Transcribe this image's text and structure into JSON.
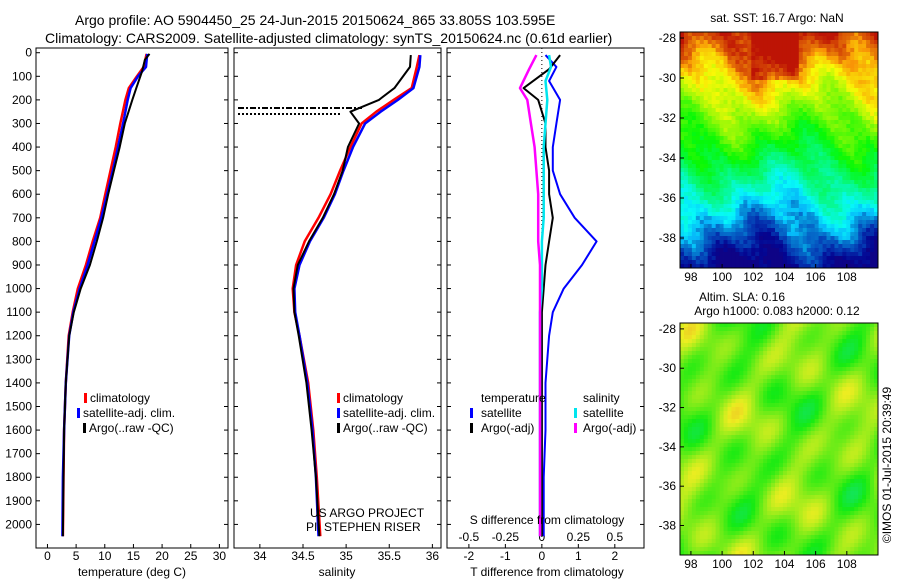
{
  "header": {
    "line1": "Argo profile: AO 5904450_25 24-Jun-2015 20150624_865 33.805S 103.595E",
    "line2": "Climatology: CARS2009. Satellite-adjusted climatology: synTS_20150624.nc (0.61d earlier)"
  },
  "side": {
    "sst_title": "sat. SST: 16.7 Argo: NaN",
    "sla_title1": "Altim. SLA: 0.16",
    "sla_title2": "Argo h1000: 0.083 h2000: 0.12",
    "credit": "©IMOS 01-Jul-2015 20:39:49"
  },
  "project": {
    "line1": "US ARGO PROJECT",
    "line2": "PI: STEPHEN RISER"
  },
  "colors": {
    "climatology": "#ff0000",
    "satellite": "#0000ff",
    "argo": "#000000",
    "sat_salinity": "#00e5ee",
    "argo_salinity": "#ff00ff"
  },
  "chart_data": [
    {
      "type": "line",
      "xlabel": "temperature (deg C)",
      "ylabel": "",
      "xlim": [
        -2,
        31.5
      ],
      "ylim": [
        2100,
        -20
      ],
      "xticks": [
        "0",
        "5",
        "10",
        "15",
        "20",
        "25",
        "30"
      ],
      "yticks": [
        "0",
        "100",
        "200",
        "300",
        "400",
        "500",
        "600",
        "700",
        "800",
        "900",
        "1000",
        "1100",
        "1200",
        "1300",
        "1400",
        "1500",
        "1600",
        "1700",
        "1800",
        "1900",
        "2000"
      ],
      "legend": [
        "climatology",
        "satellite-adj. clim.",
        "Argo(..raw -QC)"
      ],
      "series": [
        {
          "name": "climatology",
          "x": [
            17.3,
            16.8,
            15.6,
            14.2,
            13.6,
            12.7,
            11.9,
            11.0,
            10.1,
            9.2,
            7.9,
            6.7,
            5.3,
            4.4,
            3.7,
            3.2,
            2.9,
            2.8,
            2.7
          ],
          "y": [
            5,
            60,
            100,
            150,
            200,
            300,
            400,
            500,
            600,
            700,
            800,
            900,
            1000,
            1100,
            1200,
            1400,
            1600,
            1800,
            2050
          ]
        },
        {
          "name": "satellite-adj. clim.",
          "x": [
            17.4,
            17.2,
            15.8,
            14.5,
            14.0,
            13.2,
            12.3,
            11.4,
            10.4,
            9.4,
            8.2,
            7.0,
            5.6,
            4.5,
            3.8,
            3.2,
            2.9,
            2.7,
            2.6
          ],
          "y": [
            5,
            60,
            100,
            150,
            200,
            300,
            400,
            500,
            600,
            700,
            800,
            900,
            1000,
            1100,
            1200,
            1400,
            1600,
            1800,
            2050
          ]
        },
        {
          "name": "Argo(..raw -QC)",
          "x": [
            17.8,
            17.0,
            16.5,
            15.5,
            14.8,
            13.5,
            12.6,
            11.6,
            10.6,
            9.7,
            8.6,
            7.4,
            5.8,
            4.6,
            3.8,
            3.2,
            2.9,
            2.8,
            2.7
          ],
          "y": [
            5,
            30,
            80,
            150,
            200,
            300,
            400,
            500,
            600,
            700,
            800,
            900,
            1000,
            1100,
            1200,
            1400,
            1600,
            1800,
            2050
          ]
        }
      ]
    },
    {
      "type": "line",
      "xlabel": "salinity",
      "ylabel": "",
      "xlim": [
        33.7,
        36.1
      ],
      "ylim": [
        2100,
        -20
      ],
      "xticks": [
        "34",
        "34.5",
        "35",
        "35.5",
        "36"
      ],
      "legend": [
        "climatology",
        "satellite-adj. clim.",
        "Argo(..raw -QC)"
      ],
      "series": [
        {
          "name": "climatology",
          "x": [
            35.85,
            35.82,
            35.76,
            35.55,
            35.35,
            35.18,
            35.05,
            34.93,
            34.82,
            34.68,
            34.52,
            34.42,
            34.38,
            34.4,
            34.46,
            34.56,
            34.62,
            34.66,
            34.7
          ],
          "y": [
            10,
            60,
            150,
            200,
            250,
            300,
            400,
            500,
            600,
            700,
            800,
            900,
            1000,
            1100,
            1200,
            1400,
            1600,
            1800,
            2050
          ]
        },
        {
          "name": "satellite-adj. clim.",
          "x": [
            35.86,
            35.85,
            35.78,
            35.6,
            35.4,
            35.22,
            35.08,
            34.97,
            34.87,
            34.74,
            34.58,
            34.46,
            34.4,
            34.41,
            34.46,
            34.55,
            34.61,
            34.65,
            34.68
          ],
          "y": [
            10,
            60,
            150,
            200,
            250,
            300,
            400,
            500,
            600,
            700,
            800,
            900,
            1000,
            1100,
            1200,
            1400,
            1600,
            1800,
            2050
          ]
        },
        {
          "name": "Argo(..raw -QC)",
          "x": [
            35.75,
            35.74,
            35.56,
            35.38,
            35.05,
            35.15,
            35.02,
            34.96,
            34.86,
            34.73,
            34.57,
            34.44,
            34.39,
            34.4,
            34.45,
            34.54,
            34.6,
            34.65,
            34.69
          ],
          "y": [
            10,
            60,
            150,
            200,
            250,
            300,
            400,
            500,
            600,
            700,
            800,
            900,
            1000,
            1100,
            1200,
            1400,
            1600,
            1800,
            2050
          ]
        }
      ]
    },
    {
      "type": "line",
      "xlabel": "T difference from climatology",
      "top_label": "S difference from climatology",
      "xlim": [
        -2.6,
        2.8
      ],
      "ylim": [
        2100,
        -20
      ],
      "xticks": [
        "-2",
        "-1",
        "0",
        "1",
        "2"
      ],
      "top_ticks": [
        "-0.5",
        "-0.25",
        "0",
        "0.25",
        "0.5"
      ],
      "legend_headers": [
        "temperature",
        "salinity"
      ],
      "legend": [
        "satellite",
        "Argo(-adj)",
        "satellite",
        "Argo(-adj)"
      ],
      "series": [
        {
          "name": "satellite",
          "x": [
            0.1,
            0.4,
            0.2,
            0.5,
            0.4,
            0.3,
            0.3,
            0.5,
            0.9,
            1.5,
            1.1,
            0.6,
            0.3,
            0.2,
            0.1,
            0.1,
            0.05,
            0.05
          ],
          "y": [
            10,
            60,
            120,
            200,
            300,
            400,
            500,
            600,
            700,
            800,
            900,
            1000,
            1100,
            1200,
            1400,
            1600,
            1800,
            2050
          ]
        },
        {
          "name": "Argo(-adj)",
          "x": [
            0.5,
            0.2,
            -0.5,
            -0.1,
            0.1,
            0.1,
            0.2,
            0.2,
            0.3,
            0.2,
            0.1,
            0.05,
            0.0,
            0.0,
            0.0,
            0.0,
            0.0,
            0.0
          ],
          "y": [
            10,
            70,
            150,
            200,
            300,
            400,
            500,
            600,
            700,
            800,
            900,
            1000,
            1100,
            1200,
            1400,
            1600,
            1800,
            2050
          ]
        },
        {
          "name": "satellite",
          "x": [
            0.2,
            0.25,
            0.1,
            0.15,
            0.1,
            0.05,
            0.05,
            0.05,
            0.05,
            0.0,
            0.0,
            0.0,
            -0.05,
            -0.05,
            -0.05,
            -0.05,
            -0.05,
            -0.05
          ],
          "y": [
            10,
            60,
            120,
            200,
            300,
            400,
            500,
            600,
            700,
            800,
            900,
            1000,
            1100,
            1200,
            1400,
            1600,
            1800,
            2050
          ]
        },
        {
          "name": "Argo(-adj)",
          "x": [
            -0.15,
            -0.35,
            -0.6,
            -0.4,
            -0.3,
            -0.2,
            -0.15,
            -0.1,
            -0.1,
            -0.1,
            -0.05,
            -0.05,
            -0.05,
            -0.05,
            -0.05,
            -0.05,
            -0.05,
            -0.05
          ],
          "y": [
            10,
            70,
            150,
            200,
            300,
            400,
            500,
            600,
            700,
            800,
            900,
            1000,
            1100,
            1200,
            1400,
            1600,
            1800,
            2050
          ]
        }
      ]
    },
    {
      "type": "heatmap",
      "title": "sat. SST: 16.7 Argo: NaN",
      "xticks": [
        "98",
        "100",
        "102",
        "104",
        "106",
        "108"
      ],
      "yticks": [
        "-28",
        "-30",
        "-32",
        "-34",
        "-36",
        "-38"
      ],
      "xlim": [
        97.3,
        110
      ],
      "ylim": [
        -39.5,
        -27.7
      ]
    },
    {
      "type": "heatmap",
      "title": "Altim. SLA: 0.16",
      "xticks": [
        "98",
        "100",
        "102",
        "104",
        "106",
        "108"
      ],
      "yticks": [
        "-28",
        "-30",
        "-32",
        "-34",
        "-36",
        "-38"
      ],
      "xlim": [
        97.3,
        110
      ],
      "ylim": [
        -39.5,
        -27.7
      ]
    }
  ]
}
